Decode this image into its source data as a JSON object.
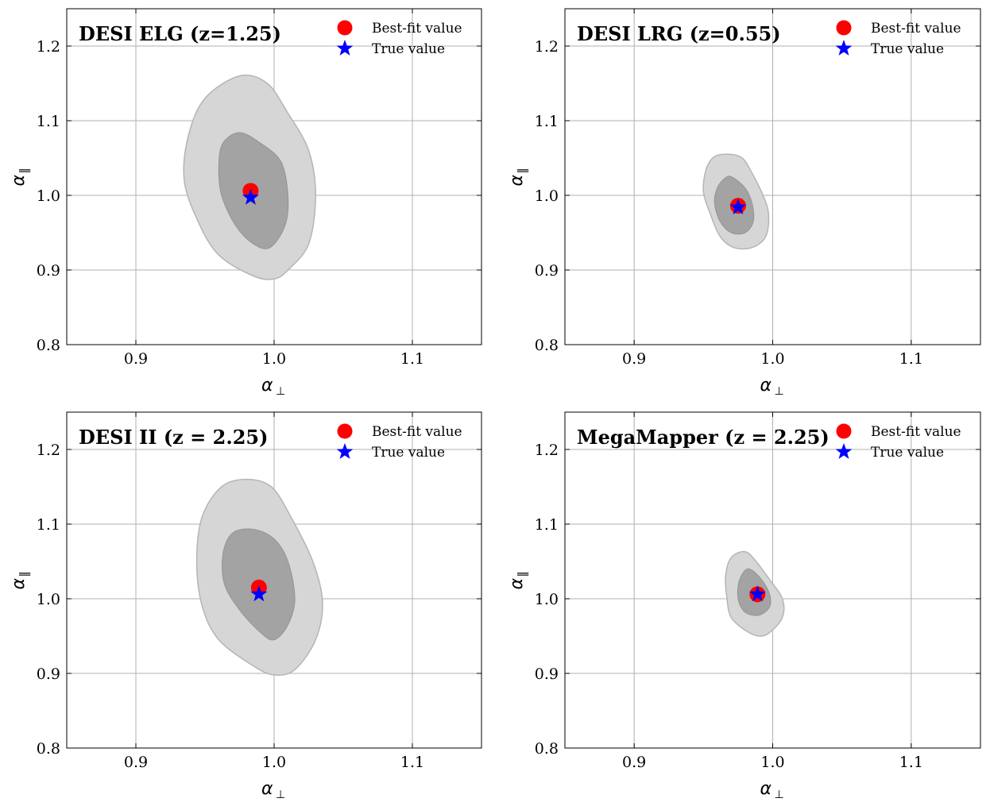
{
  "chart_data": [
    {
      "type": "contour",
      "title": "DESI ELG (z=1.25)",
      "xlabel": "α⊥",
      "ylabel": "α‖",
      "xlim": [
        0.85,
        1.15
      ],
      "ylim": [
        0.8,
        1.25
      ],
      "xticks": [
        0.9,
        1.0,
        1.1
      ],
      "yticks": [
        0.8,
        0.9,
        1.0,
        1.1,
        1.2
      ],
      "legend": [
        "Best-fit value",
        "True value"
      ],
      "legend_position": "top-right",
      "best_fit": [
        0.983,
        1.006
      ],
      "true_value": [
        0.983,
        0.997
      ],
      "contour_outer": [
        [
          0.975,
          1.16
        ],
        [
          0.995,
          1.15
        ],
        [
          1.01,
          1.11
        ],
        [
          1.025,
          1.06
        ],
        [
          1.03,
          1.0
        ],
        [
          1.025,
          0.935
        ],
        [
          1.01,
          0.9
        ],
        [
          1.0,
          0.888
        ],
        [
          0.985,
          0.892
        ],
        [
          0.96,
          0.92
        ],
        [
          0.945,
          0.965
        ],
        [
          0.935,
          1.02
        ],
        [
          0.938,
          1.08
        ],
        [
          0.95,
          1.13
        ]
      ],
      "contour_inner": [
        [
          0.975,
          1.084
        ],
        [
          0.99,
          1.07
        ],
        [
          1.005,
          1.045
        ],
        [
          1.01,
          1.0
        ],
        [
          1.008,
          0.96
        ],
        [
          0.997,
          0.93
        ],
        [
          0.985,
          0.935
        ],
        [
          0.972,
          0.96
        ],
        [
          0.962,
          1.0
        ],
        [
          0.96,
          1.04
        ],
        [
          0.963,
          1.07
        ]
      ],
      "grid": true
    },
    {
      "type": "contour",
      "title": "DESI LRG (z=0.55)",
      "xlabel": "α⊥",
      "ylabel": "α‖",
      "xlim": [
        0.85,
        1.15
      ],
      "ylim": [
        0.8,
        1.25
      ],
      "xticks": [
        0.9,
        1.0,
        1.1
      ],
      "yticks": [
        0.8,
        0.9,
        1.0,
        1.1,
        1.2
      ],
      "legend": [
        "Best-fit value",
        "True value"
      ],
      "legend_position": "top-right",
      "best_fit": [
        0.975,
        0.986
      ],
      "true_value": [
        0.975,
        0.984
      ],
      "contour_outer": [
        [
          0.968,
          1.055
        ],
        [
          0.978,
          1.05
        ],
        [
          0.985,
          1.03
        ],
        [
          0.993,
          1.0
        ],
        [
          0.997,
          0.975
        ],
        [
          0.995,
          0.945
        ],
        [
          0.985,
          0.93
        ],
        [
          0.972,
          0.93
        ],
        [
          0.962,
          0.945
        ],
        [
          0.955,
          0.975
        ],
        [
          0.95,
          1.005
        ],
        [
          0.952,
          1.035
        ],
        [
          0.958,
          1.052
        ]
      ],
      "contour_inner": [
        [
          0.97,
          1.025
        ],
        [
          0.98,
          1.01
        ],
        [
          0.985,
          0.99
        ],
        [
          0.986,
          0.965
        ],
        [
          0.98,
          0.95
        ],
        [
          0.97,
          0.95
        ],
        [
          0.962,
          0.965
        ],
        [
          0.958,
          0.99
        ],
        [
          0.96,
          1.01
        ],
        [
          0.965,
          1.022
        ]
      ],
      "grid": true
    },
    {
      "type": "contour",
      "title": "DESI II (z = 2.25)",
      "xlabel": "α⊥",
      "ylabel": "α‖",
      "xlim": [
        0.85,
        1.15
      ],
      "ylim": [
        0.8,
        1.25
      ],
      "xticks": [
        0.9,
        1.0,
        1.1
      ],
      "yticks": [
        0.8,
        0.9,
        1.0,
        1.1,
        1.2
      ],
      "legend": [
        "Best-fit value",
        "True value"
      ],
      "legend_position": "top-right",
      "best_fit": [
        0.989,
        1.015
      ],
      "true_value": [
        0.989,
        1.006
      ],
      "contour_outer": [
        [
          0.98,
          1.16
        ],
        [
          0.998,
          1.15
        ],
        [
          1.012,
          1.11
        ],
        [
          1.028,
          1.05
        ],
        [
          1.035,
          0.995
        ],
        [
          1.03,
          0.945
        ],
        [
          1.015,
          0.905
        ],
        [
          1.0,
          0.898
        ],
        [
          0.985,
          0.91
        ],
        [
          0.96,
          0.945
        ],
        [
          0.948,
          0.99
        ],
        [
          0.944,
          1.05
        ],
        [
          0.948,
          1.11
        ],
        [
          0.962,
          1.15
        ]
      ],
      "contour_inner": [
        [
          0.985,
          1.093
        ],
        [
          1.0,
          1.08
        ],
        [
          1.01,
          1.05
        ],
        [
          1.015,
          1.0
        ],
        [
          1.01,
          0.965
        ],
        [
          1.0,
          0.945
        ],
        [
          0.99,
          0.955
        ],
        [
          0.975,
          0.985
        ],
        [
          0.964,
          1.02
        ],
        [
          0.963,
          1.06
        ],
        [
          0.97,
          1.088
        ]
      ],
      "grid": true
    },
    {
      "type": "contour",
      "title": "MegaMapper (z = 2.25)",
      "xlabel": "α⊥",
      "ylabel": "α‖",
      "xlim": [
        0.85,
        1.15
      ],
      "ylim": [
        0.8,
        1.25
      ],
      "xticks": [
        0.9,
        1.0,
        1.1
      ],
      "yticks": [
        0.8,
        0.9,
        1.0,
        1.1,
        1.2
      ],
      "legend": [
        "Best-fit value",
        "True value"
      ],
      "legend_position": "top-right",
      "best_fit": [
        0.989,
        1.006
      ],
      "true_value": [
        0.989,
        1.006
      ],
      "contour_outer": [
        [
          0.98,
          1.063
        ],
        [
          0.988,
          1.05
        ],
        [
          0.998,
          1.025
        ],
        [
          1.007,
          1.0
        ],
        [
          1.007,
          0.975
        ],
        [
          0.998,
          0.955
        ],
        [
          0.99,
          0.95
        ],
        [
          0.98,
          0.958
        ],
        [
          0.97,
          0.975
        ],
        [
          0.967,
          1.0
        ],
        [
          0.966,
          1.03
        ],
        [
          0.97,
          1.055
        ]
      ],
      "contour_inner": [
        [
          0.982,
          1.04
        ],
        [
          0.99,
          1.03
        ],
        [
          0.997,
          1.01
        ],
        [
          0.998,
          0.99
        ],
        [
          0.99,
          0.978
        ],
        [
          0.98,
          0.982
        ],
        [
          0.975,
          1.0
        ],
        [
          0.976,
          1.025
        ]
      ],
      "grid": true
    }
  ]
}
